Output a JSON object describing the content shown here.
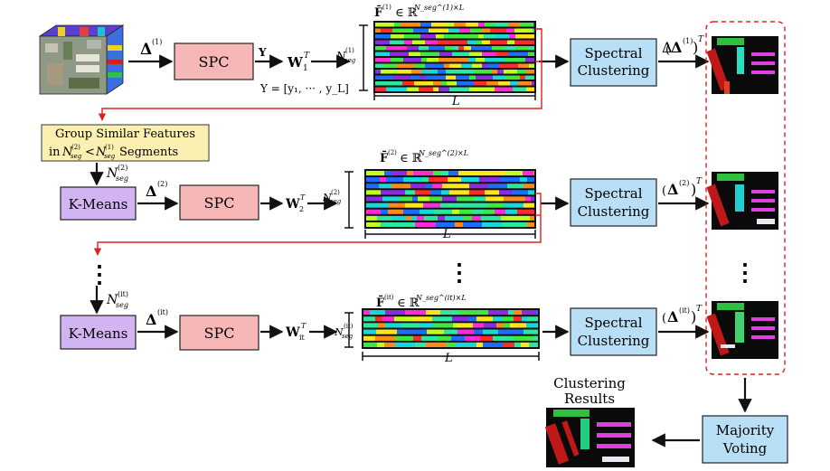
{
  "colors": {
    "spc_fill": "#f7b7b7",
    "kmeans_fill": "#d2b4f2",
    "spectral_fill": "#b8dff5",
    "group_fill": "#fbf0b2",
    "dashed_border": "#e02020",
    "red_connector": "#e02020"
  },
  "row1": {
    "delta_label": "Δ",
    "delta_sup": "(1)",
    "spc_label": "SPC",
    "y_label": "Y",
    "w_label": "W",
    "w_sub": "1",
    "w_sup": "T",
    "y_def": "Y = [y₁, ··· , y_L]",
    "matrix_title_F": "F̄",
    "matrix_title_sup": "(1)",
    "matrix_title_rest": "∈ ℝ",
    "matrix_title_exp": "N_seg^(1)×L",
    "n_label": "N",
    "n_sub": "seg",
    "n_sup": "(1)",
    "l_label": "L",
    "spectral_line1": "Spectral",
    "spectral_line2": "Clustering",
    "out_delta": "Δ",
    "out_sup": "(1)",
    "out_T": "T"
  },
  "group": {
    "line1": "Group Similar Features",
    "line2": "in N_seg^(2) < N_seg^(1) Segments"
  },
  "row2": {
    "n_in_label": "N",
    "n_in_sub": "seg",
    "n_in_sup": "(2)",
    "kmeans_label": "K-Means",
    "delta_label": "Δ",
    "delta_sup": "(2)",
    "spc_label": "SPC",
    "w_label": "W",
    "w_sub": "2",
    "w_sup": "T",
    "matrix_title_F": "F̄",
    "matrix_title_sup": "(2)",
    "matrix_title_rest": "∈ ℝ",
    "matrix_title_exp": "N_seg^(2)×L",
    "n_label": "N",
    "n_sub": "seg",
    "n_sup": "(2)",
    "l_label": "L",
    "spectral_line1": "Spectral",
    "spectral_line2": "Clustering",
    "out_delta": "Δ",
    "out_sup": "(2)",
    "out_T": "T"
  },
  "row3": {
    "n_in_label": "N",
    "n_in_sub": "seg",
    "n_in_sup": "(it)",
    "kmeans_label": "K-Means",
    "delta_label": "Δ",
    "delta_sup": "(it)",
    "spc_label": "SPC",
    "w_label": "W",
    "w_sub": "it",
    "w_sup": "T",
    "matrix_title_F": "F̄",
    "matrix_title_sup": "(it)",
    "matrix_title_rest": "∈ ℝ",
    "matrix_title_exp": "N_seg^(it)×L",
    "n_label": "N",
    "n_sub": "seg",
    "n_sup": "(it)",
    "l_label": "L",
    "spectral_line1": "Spectral",
    "spectral_line2": "Clustering",
    "out_delta": "Δ",
    "out_sup": "(it)",
    "out_T": "T"
  },
  "ellipsis": "⋮",
  "voting": {
    "line1": "Majority",
    "line2": "Voting"
  },
  "results": {
    "line1": "Clustering",
    "line2": "Results"
  }
}
